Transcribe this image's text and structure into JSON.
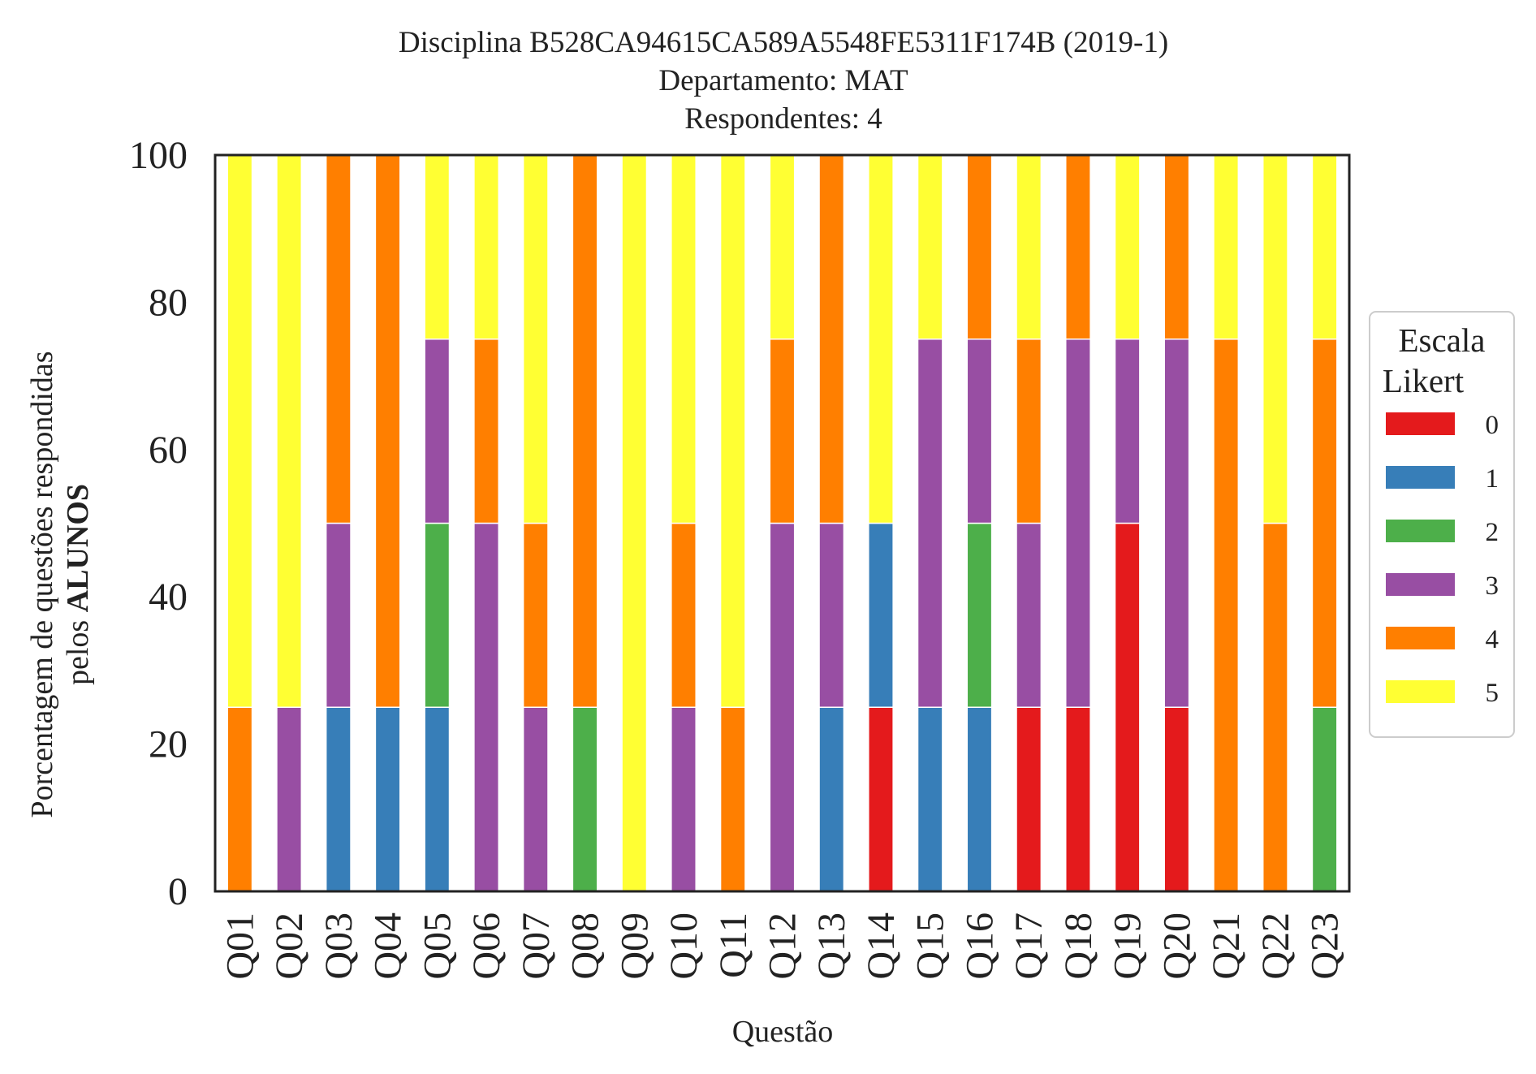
{
  "chart_data": {
    "type": "bar",
    "stacked": true,
    "title_lines": [
      "Disciplina B528CA94615CA589A5548FE5311F174B (2019-1)",
      "Departamento: MAT",
      "Respondentes: 4"
    ],
    "ylabel_line1": "Porcentagem de questões respondidas",
    "ylabel_line2_prefix": "pelos ",
    "ylabel_line2_bold": "ALUNOS",
    "xlabel": "Questão",
    "ylim": [
      0,
      100
    ],
    "yticks": [
      "0",
      "20",
      "40",
      "60",
      "80",
      "100"
    ],
    "grid": false,
    "legend": {
      "title_line1": "Escala",
      "title_line2": "Likert",
      "placement": "right-center"
    },
    "categories": [
      "Q01",
      "Q02",
      "Q03",
      "Q04",
      "Q05",
      "Q06",
      "Q07",
      "Q08",
      "Q09",
      "Q10",
      "Q11",
      "Q12",
      "Q13",
      "Q14",
      "Q15",
      "Q16",
      "Q17",
      "Q18",
      "Q19",
      "Q20",
      "Q21",
      "Q22",
      "Q23"
    ],
    "series": [
      {
        "name": "0",
        "color": "#e41a1c",
        "values": [
          0,
          0,
          0,
          0,
          0,
          0,
          0,
          0,
          0,
          0,
          0,
          0,
          0,
          25,
          0,
          0,
          25,
          25,
          50,
          25,
          0,
          0,
          0
        ]
      },
      {
        "name": "1",
        "color": "#377eb8",
        "values": [
          0,
          0,
          25,
          25,
          25,
          0,
          0,
          0,
          0,
          0,
          0,
          0,
          25,
          25,
          25,
          25,
          0,
          0,
          0,
          0,
          0,
          0,
          0
        ]
      },
      {
        "name": "2",
        "color": "#4daf4a",
        "values": [
          0,
          0,
          0,
          0,
          25,
          0,
          0,
          25,
          0,
          0,
          0,
          0,
          0,
          0,
          0,
          25,
          0,
          0,
          0,
          0,
          0,
          0,
          25
        ]
      },
      {
        "name": "3",
        "color": "#984ea3",
        "values": [
          0,
          25,
          25,
          0,
          25,
          50,
          25,
          0,
          0,
          25,
          0,
          50,
          25,
          0,
          50,
          25,
          25,
          50,
          25,
          50,
          0,
          0,
          0
        ]
      },
      {
        "name": "4",
        "color": "#ff7f00",
        "values": [
          25,
          0,
          50,
          75,
          0,
          25,
          25,
          75,
          0,
          25,
          25,
          25,
          50,
          0,
          0,
          25,
          25,
          25,
          0,
          25,
          75,
          50,
          50
        ]
      },
      {
        "name": "5",
        "color": "#ffff33",
        "values": [
          75,
          75,
          0,
          0,
          25,
          25,
          50,
          0,
          100,
          50,
          75,
          25,
          0,
          50,
          25,
          0,
          25,
          0,
          25,
          0,
          25,
          50,
          25
        ]
      }
    ]
  }
}
